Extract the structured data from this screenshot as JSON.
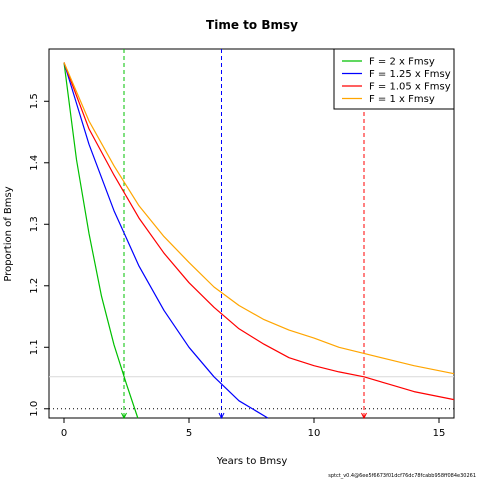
{
  "chart_data": {
    "type": "line",
    "title": "Time to Bmsy",
    "xlabel": "Years to Bmsy",
    "ylabel": "Proportion of Bmsy",
    "xlim": [
      -0.6,
      15.6
    ],
    "ylim": [
      0.985,
      1.585
    ],
    "x_ticks": [
      0,
      5,
      10,
      15
    ],
    "y_ticks": [
      1.0,
      1.1,
      1.2,
      1.3,
      1.4,
      1.5
    ],
    "start_value": 1.563,
    "legend_position": "top-right",
    "series": [
      {
        "name": "F = 2 x Fmsy",
        "color": "#00c000",
        "x": [
          0,
          0.5,
          1,
          1.5,
          2,
          2.5,
          2.95
        ],
        "y": [
          1.563,
          1.405,
          1.285,
          1.183,
          1.104,
          1.04,
          0.985
        ]
      },
      {
        "name": "F = 1.25 x Fmsy",
        "color": "#0000ff",
        "x": [
          0,
          1,
          2,
          3,
          4,
          5,
          6,
          7,
          8.15
        ],
        "y": [
          1.563,
          1.43,
          1.322,
          1.232,
          1.16,
          1.1,
          1.052,
          1.013,
          0.985
        ]
      },
      {
        "name": "F = 1.05 x Fmsy",
        "color": "#ff0000",
        "x": [
          0,
          1,
          2,
          3,
          4,
          5,
          6,
          7,
          8,
          9,
          10,
          11,
          12,
          13,
          14,
          15.6
        ],
        "y": [
          1.563,
          1.455,
          1.38,
          1.31,
          1.253,
          1.205,
          1.165,
          1.13,
          1.105,
          1.083,
          1.07,
          1.06,
          1.052,
          1.04,
          1.028,
          1.015
        ]
      },
      {
        "name": "F = 1 x Fmsy",
        "color": "#ffa500",
        "x": [
          0,
          1,
          2,
          3,
          4,
          5,
          6,
          7,
          8,
          9,
          10,
          11,
          12,
          13,
          14,
          15.6
        ],
        "y": [
          1.563,
          1.468,
          1.395,
          1.33,
          1.28,
          1.238,
          1.198,
          1.168,
          1.145,
          1.128,
          1.115,
          1.1,
          1.09,
          1.08,
          1.07,
          1.057
        ]
      }
    ],
    "reference_lines": [
      {
        "orientation": "vertical",
        "x": 2.4,
        "color": "#00c000",
        "style": "dashed"
      },
      {
        "orientation": "vertical",
        "x": 6.3,
        "color": "#0000ff",
        "style": "dashed"
      },
      {
        "orientation": "vertical",
        "x": 12.0,
        "color": "#ff0000",
        "style": "dashed"
      },
      {
        "orientation": "horizontal",
        "y": 1.052,
        "color": "#d9d9d9",
        "style": "solid"
      },
      {
        "orientation": "horizontal",
        "y": 1.0,
        "color": "#000000",
        "style": "dotted"
      }
    ]
  },
  "footer_text": "sptct_v0.4@6ee5f6673f01dcf76dc78fcabb958ff084e30261"
}
